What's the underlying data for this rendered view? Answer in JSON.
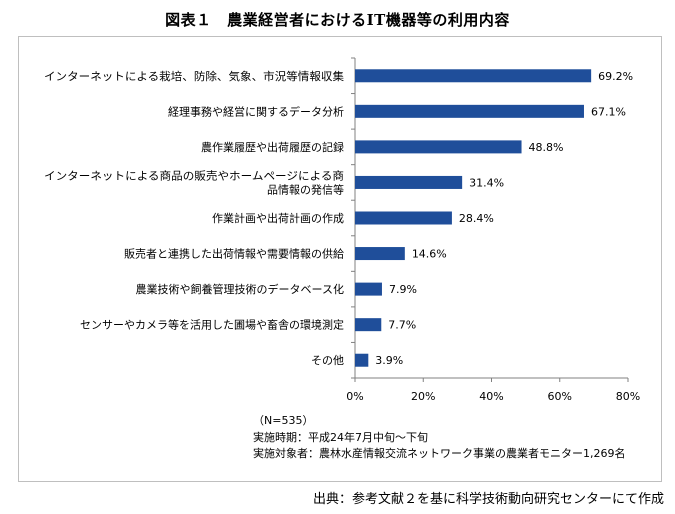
{
  "title": "図表１　農業経営者におけるIT機器等の利用内容",
  "notes": [
    "（N=535）",
    "実施時期：平成24年7月中旬～下旬",
    "実施対象者：農林水産情報交流ネットワーク事業の農業者モニター1,269名"
  ],
  "source": "出典：参考文献２を基に科学技術動向研究センターにて作成",
  "chart_data": {
    "type": "bar",
    "orientation": "horizontal",
    "categories": [
      [
        "インターネットによる栽培、防除、気象、市況等情報収集"
      ],
      [
        "経理事務や経営に関するデータ分析"
      ],
      [
        "農作業履歴や出荷履歴の記録"
      ],
      [
        "インターネットによる商品の販売やホームページによる商",
        "品情報の発信等"
      ],
      [
        "作業計画や出荷計画の作成"
      ],
      [
        "販売者と連携した出荷情報や需要情報の供給"
      ],
      [
        "農業技術や飼養管理技術のデータベース化"
      ],
      [
        "センサーやカメラ等を活用した圃場や畜舎の環境測定"
      ],
      [
        "その他"
      ]
    ],
    "values": [
      69.2,
      67.1,
      48.8,
      31.4,
      28.4,
      14.6,
      7.9,
      7.7,
      3.9
    ],
    "value_labels": [
      "69.2%",
      "67.1%",
      "48.8%",
      "31.4%",
      "28.4%",
      "14.6%",
      "7.9%",
      "7.7%",
      "3.9%"
    ],
    "xlim": [
      0,
      80
    ],
    "xticks": [
      0,
      20,
      40,
      60,
      80
    ],
    "xtick_labels": [
      "0%",
      "20%",
      "40%",
      "60%",
      "80%"
    ],
    "bar_color": "#1f4e9a",
    "grid": false
  }
}
